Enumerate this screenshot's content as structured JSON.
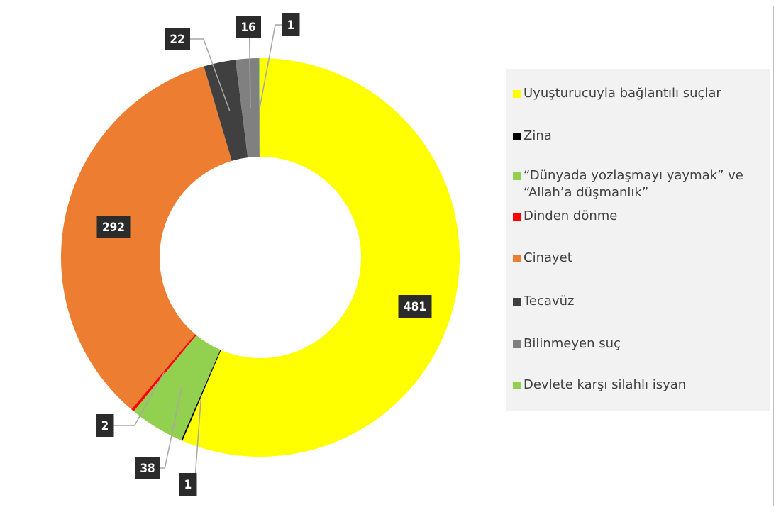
{
  "chart_data": {
    "type": "donut",
    "categories": [
      "Uyuşturucuyla bağlantılı suçlar",
      "Zina",
      "“Dünyada yozlaşmayı yaymak” ve “Allah’a düşmanlık”",
      "Dinden dönme",
      "Cinayet",
      "Tecavüz",
      "Bilinmeyen suç",
      "Devlete karşı silahlı isyan"
    ],
    "values": [
      481,
      1,
      38,
      2,
      292,
      22,
      16,
      1
    ],
    "colors": [
      "#ffff00",
      "#000000",
      "#92d050",
      "#ff0000",
      "#ed7d31",
      "#404040",
      "#808080",
      "#92d050"
    ],
    "legend": "right"
  }
}
